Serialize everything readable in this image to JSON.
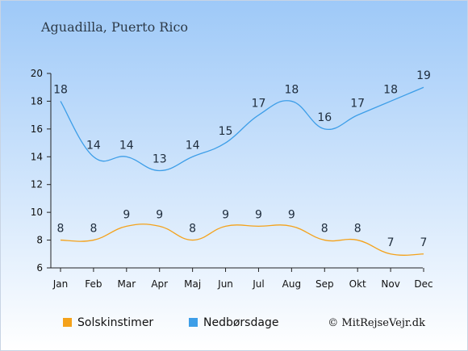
{
  "header": {
    "title": "Aguadilla, Puerto Rico"
  },
  "credit": "© MitRejseVejr.dk",
  "colors": {
    "bg_top": "#9ec9f8",
    "bg_bottom": "#ffffff",
    "sunshine": "#f4a21b",
    "rain_days": "#3d9ee8"
  },
  "chart_data": {
    "type": "line",
    "categories": [
      "Jan",
      "Feb",
      "Mar",
      "Apr",
      "Maj",
      "Jun",
      "Jul",
      "Aug",
      "Sep",
      "Okt",
      "Nov",
      "Dec"
    ],
    "yticks": [
      "6",
      "8",
      "10",
      "12",
      "14",
      "16",
      "18",
      "20"
    ],
    "ylim": [
      6,
      20
    ],
    "grid": false,
    "legend_position": "bottom",
    "series": [
      {
        "key": "sunshine",
        "name": "Solskinstimer",
        "color": "#f4a21b",
        "values": [
          8,
          8,
          9,
          9,
          8,
          9,
          9,
          9,
          8,
          8,
          7,
          7
        ],
        "labels": [
          "8",
          "8",
          "9",
          "9",
          "8",
          "9",
          "9",
          "9",
          "8",
          "8",
          "7",
          "7"
        ]
      },
      {
        "key": "rain",
        "name": "Nedbørsdage",
        "color": "#3d9ee8",
        "values": [
          18,
          14,
          14,
          13,
          14,
          15,
          17,
          18,
          16,
          17,
          18,
          19
        ],
        "labels": [
          "18",
          "14",
          "14",
          "13",
          "14",
          "15",
          "17",
          "18",
          "16",
          "17",
          "18",
          "19"
        ]
      }
    ]
  }
}
